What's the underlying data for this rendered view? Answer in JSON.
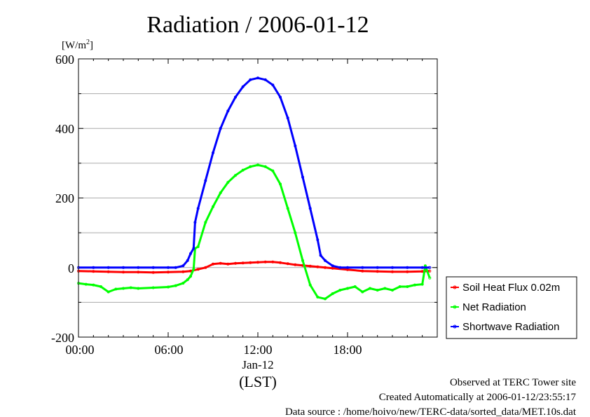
{
  "chart_data": {
    "type": "line",
    "title": "Radiation / 2006-01-12",
    "ylabel": "[W/m2]",
    "ylabel_base": "[W/m",
    "ylabel_sup": "2",
    "ylabel_end": "]",
    "xlabel_date": "Jan-12",
    "xlabel_tz": "(LST)",
    "xlim": [
      0,
      24
    ],
    "ylim": [
      -200,
      600
    ],
    "x_unit": "hours (LST)",
    "x_ticks": [
      "00:00",
      "06:00",
      "12:00",
      "18:00"
    ],
    "y_ticks": [
      "600",
      "400",
      "200",
      "0",
      "-200"
    ],
    "grid": true,
    "legend_placement": "right-bottom",
    "series": [
      {
        "name": "Soil Heat Flux 0.02m",
        "color": "#ff0000",
        "x": [
          0,
          1,
          2,
          3,
          4,
          5,
          6,
          7,
          7.5,
          8,
          8.5,
          9,
          9.5,
          10,
          10.5,
          11,
          11.5,
          12,
          12.5,
          13,
          13.5,
          14,
          14.5,
          15,
          15.5,
          16,
          16.5,
          17,
          18,
          19,
          20,
          21,
          22,
          23,
          23.5
        ],
        "values": [
          -10,
          -11,
          -12,
          -13,
          -13,
          -14,
          -13,
          -12,
          -10,
          -5,
          0,
          10,
          12,
          10,
          12,
          13,
          14,
          15,
          16,
          16,
          14,
          11,
          8,
          6,
          4,
          2,
          0,
          -2,
          -6,
          -10,
          -11,
          -12,
          -12,
          -11,
          -10
        ]
      },
      {
        "name": "Net Radiation",
        "color": "#00ff00",
        "x": [
          0,
          0.5,
          1,
          1.5,
          2,
          2.5,
          3,
          3.5,
          4,
          5,
          6,
          6.5,
          7,
          7.3,
          7.5,
          7.7,
          7.8,
          8,
          8.5,
          9,
          9.5,
          10,
          10.5,
          11,
          11.5,
          12,
          12.5,
          13,
          13.5,
          14,
          14.5,
          15,
          15.5,
          16,
          16.5,
          17,
          17.5,
          18,
          18.5,
          19,
          19.5,
          20,
          20.5,
          21,
          21.5,
          22,
          22.5,
          23,
          23.2,
          23.5
        ],
        "values": [
          -45,
          -48,
          -50,
          -55,
          -70,
          -62,
          -60,
          -58,
          -60,
          -58,
          -56,
          -52,
          -45,
          -35,
          -25,
          -5,
          55,
          60,
          130,
          175,
          215,
          245,
          265,
          280,
          290,
          295,
          290,
          278,
          240,
          170,
          100,
          20,
          -50,
          -85,
          -90,
          -75,
          -65,
          -60,
          -55,
          -70,
          -60,
          -65,
          -60,
          -65,
          -55,
          -55,
          -50,
          -48,
          5,
          -30
        ]
      },
      {
        "name": "Shortwave Radiation",
        "color": "#0000ff",
        "x": [
          0,
          1,
          2,
          3,
          4,
          5,
          6,
          6.5,
          7,
          7.3,
          7.5,
          7.7,
          7.8,
          8,
          8.5,
          9,
          9.5,
          10,
          10.5,
          11,
          11.5,
          12,
          12.5,
          13,
          13.5,
          14,
          14.5,
          15,
          15.5,
          16,
          16.2,
          16.5,
          17,
          17.5,
          18,
          19,
          20,
          21,
          22,
          23,
          23.5
        ],
        "values": [
          0,
          0,
          0,
          0,
          0,
          0,
          0,
          0,
          5,
          20,
          40,
          55,
          130,
          170,
          250,
          330,
          400,
          450,
          490,
          520,
          540,
          545,
          540,
          525,
          490,
          430,
          350,
          260,
          170,
          80,
          35,
          20,
          5,
          0,
          0,
          0,
          0,
          0,
          0,
          0,
          0
        ]
      }
    ]
  },
  "footer": {
    "line1": "Observed at TERC Tower site",
    "line2": "Created Automatically at 2006-01-12/23:55:17",
    "line3": "Data source : /home/hoivo/new/TERC-data/sorted_data/MET.10s.dat"
  }
}
